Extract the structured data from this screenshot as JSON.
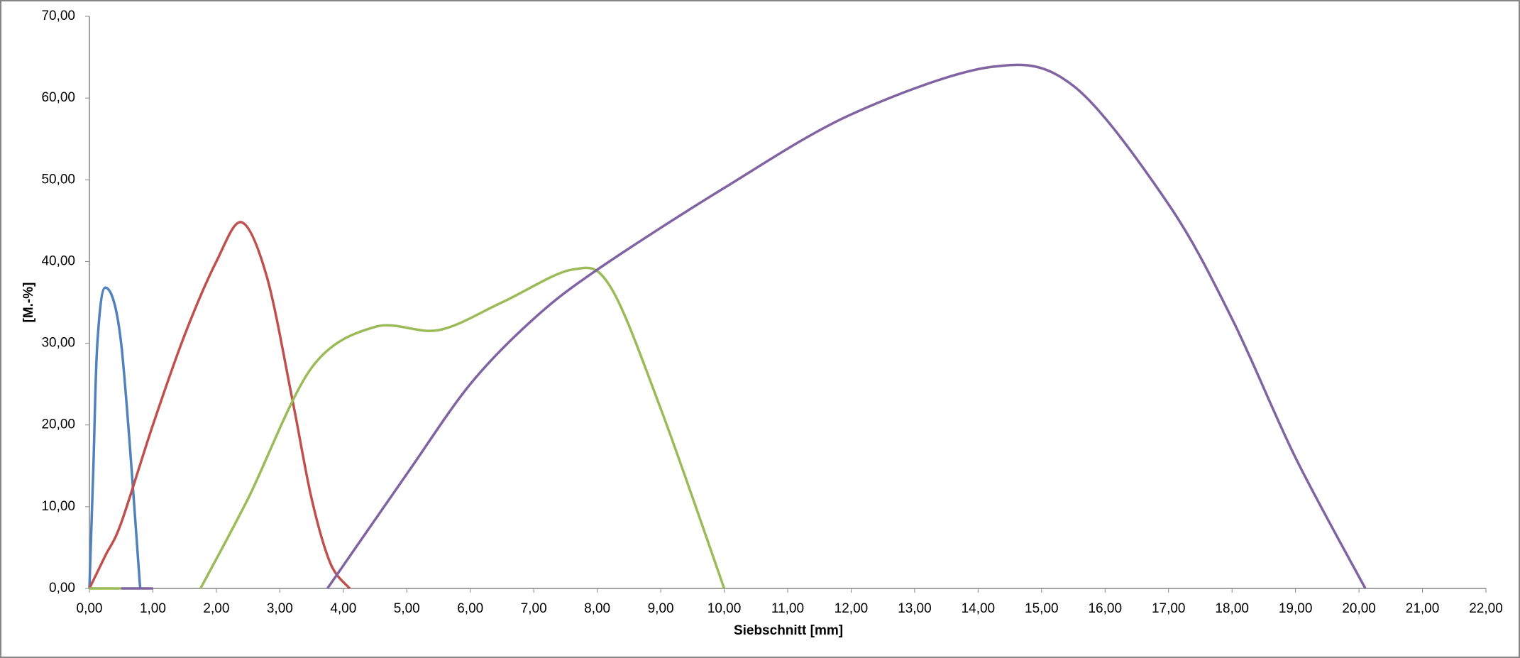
{
  "chart_data": {
    "type": "line",
    "x_label": "Siebschnitt [mm]",
    "y_label": "[M.-%]",
    "xlim": [
      0,
      22
    ],
    "ylim": [
      0,
      70
    ],
    "xticks": [
      {
        "value": 0,
        "label": "0,00"
      },
      {
        "value": 1,
        "label": "1,00"
      },
      {
        "value": 2,
        "label": "2,00"
      },
      {
        "value": 3,
        "label": "3,00"
      },
      {
        "value": 4,
        "label": "4,00"
      },
      {
        "value": 5,
        "label": "5,00"
      },
      {
        "value": 6,
        "label": "6,00"
      },
      {
        "value": 7,
        "label": "7,00"
      },
      {
        "value": 8,
        "label": "8,00"
      },
      {
        "value": 9,
        "label": "9,00"
      },
      {
        "value": 10,
        "label": "10,00"
      },
      {
        "value": 11,
        "label": "11,00"
      },
      {
        "value": 12,
        "label": "12,00"
      },
      {
        "value": 13,
        "label": "13,00"
      },
      {
        "value": 14,
        "label": "14,00"
      },
      {
        "value": 15,
        "label": "15,00"
      },
      {
        "value": 16,
        "label": "16,00"
      },
      {
        "value": 17,
        "label": "17,00"
      },
      {
        "value": 18,
        "label": "18,00"
      },
      {
        "value": 19,
        "label": "19,00"
      },
      {
        "value": 20,
        "label": "20,00"
      },
      {
        "value": 21,
        "label": "21,00"
      },
      {
        "value": 22,
        "label": "22,00"
      }
    ],
    "yticks": [
      {
        "value": 0,
        "label": "0,00"
      },
      {
        "value": 10,
        "label": "10,00"
      },
      {
        "value": 20,
        "label": "20,00"
      },
      {
        "value": 30,
        "label": "30,00"
      },
      {
        "value": 40,
        "label": "40,00"
      },
      {
        "value": 50,
        "label": "50,00"
      },
      {
        "value": 60,
        "label": "60,00"
      },
      {
        "value": 70,
        "label": "70,00"
      }
    ],
    "series": [
      {
        "color": "#4f81bd",
        "x": [
          0,
          0.063,
          0.125,
          0.25,
          0.5,
          0.8
        ],
        "values": [
          0,
          15,
          30,
          36.8,
          30,
          0
        ]
      },
      {
        "color": "#c0504d",
        "x": [
          0,
          0.25,
          0.5,
          1,
          1.5,
          2,
          2.4,
          2.8,
          3.2,
          3.5,
          3.8,
          4.1
        ],
        "values": [
          0,
          4,
          8,
          20,
          31,
          40,
          44.8,
          38,
          23,
          11,
          3,
          0
        ]
      },
      {
        "color": "#9bbb59",
        "x": [
          0,
          0.5,
          1,
          1.75,
          2.5,
          3.5,
          4.5,
          5.5,
          6.5,
          7.6,
          8.2,
          9,
          10
        ],
        "values": [
          0,
          0,
          null,
          0,
          11,
          27,
          32,
          31.6,
          35,
          39,
          37,
          22,
          0
        ]
      },
      {
        "color": "#8064a2",
        "x": [
          0.5,
          1,
          2,
          3.75,
          5,
          6,
          7,
          8,
          10,
          12,
          14.2,
          15.5,
          17,
          18,
          19,
          20.1
        ],
        "values": [
          0,
          0,
          null,
          0,
          14,
          25,
          33,
          39,
          49,
          58,
          63.8,
          61.5,
          47,
          33,
          16,
          0
        ]
      }
    ]
  }
}
